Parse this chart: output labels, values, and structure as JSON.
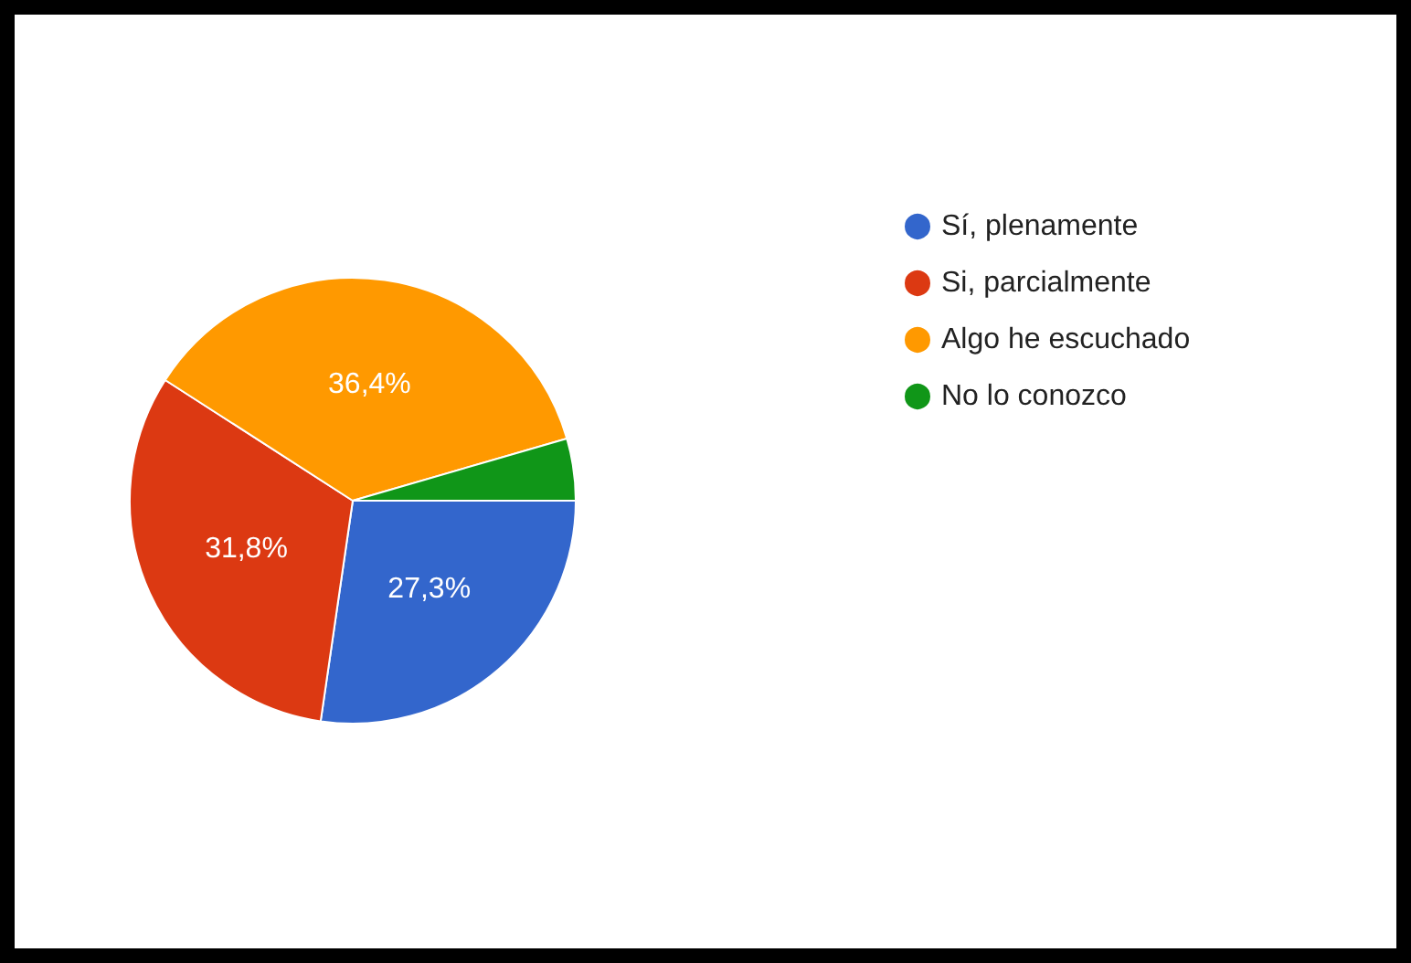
{
  "chart_data": {
    "type": "pie",
    "categories": [
      "Sí, plenamente",
      "Si, parcialmente",
      "Algo he escuchado",
      "No lo conozco"
    ],
    "values": [
      27.3,
      31.8,
      36.4,
      4.5
    ],
    "value_labels": [
      "27,3%",
      "31,8%",
      "36,4%",
      null
    ],
    "colors": [
      "#3366cc",
      "#dc3912",
      "#ff9900",
      "#109618"
    ],
    "legend": "top right"
  }
}
